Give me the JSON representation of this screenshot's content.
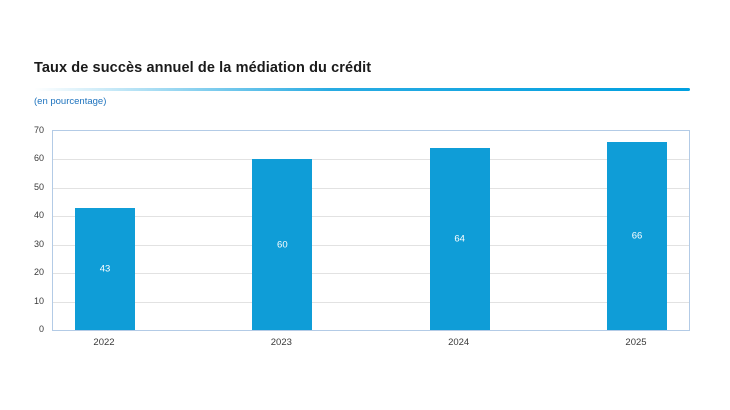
{
  "figure": {
    "title": "Taux de succès annuel de la médiation du crédit",
    "subtitle": "(en pourcentage)"
  },
  "chart_data": {
    "type": "bar",
    "title": "Taux de succès annuel de la médiation du crédit",
    "subtitle": "(en pourcentage)",
    "categories": [
      "2022",
      "2023",
      "2024",
      "2025"
    ],
    "values": [
      43,
      60,
      64,
      66
    ],
    "value_labels": [
      "43",
      "60",
      "64",
      "66"
    ],
    "xlabel": "",
    "ylabel": "(en pourcentage)",
    "ylim": [
      0,
      70
    ],
    "yticks": [
      0,
      10,
      20,
      30,
      40,
      50,
      60,
      70
    ],
    "grid": "horizontal",
    "legend": "none",
    "value_labels_position": "center-inside-bar"
  },
  "colors": {
    "bar": "#0f9dd7",
    "bar_label": "#ffffff",
    "plot_border": "#b3cbe6",
    "gridline": "#e2e2e2",
    "title_text": "#1a1a1a",
    "subtitle_text": "#1e73be",
    "axis_text": "#3a3a3a",
    "rule_mid": "#29abe2",
    "rule_end": "#00a0e0",
    "page_bg": "#ffffff"
  }
}
